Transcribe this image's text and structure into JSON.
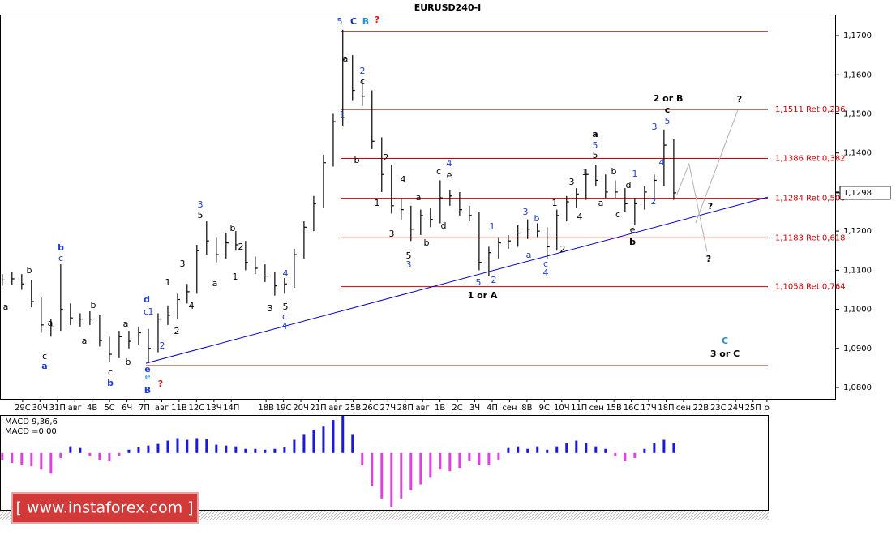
{
  "chart_data": {
    "type": "ohlc",
    "title": "EURUSD240-I",
    "color": "#000000",
    "x": [
      -1.17,
      -0.61,
      -0.05,
      0.51,
      1.07,
      1.63,
      2.19,
      2.75,
      3.31,
      3.87,
      4.43,
      4.99,
      5.55,
      6.11,
      6.67,
      7.23,
      7.79,
      8.35,
      8.91,
      9.46,
      10.02,
      10.58,
      11.14,
      11.7,
      12.26,
      12.82,
      13.38,
      13.94,
      14.5,
      15.06,
      15.62,
      16.18,
      16.74,
      17.3,
      17.86,
      18.41,
      18.97,
      19.53,
      20.09,
      20.65,
      21.21,
      21.77,
      22.33,
      22.89,
      23.45,
      24.01,
      24.57,
      25.13,
      25.69,
      26.25,
      26.81,
      27.37,
      27.93,
      28.48,
      29.04,
      29.6,
      30.16,
      30.72,
      31.28,
      31.84,
      32.4,
      32.96,
      33.52,
      34.08,
      34.64,
      35.2,
      35.76,
      36.32,
      36.88,
      37.44
    ],
    "high": [
      1.109,
      1.1095,
      1.109,
      1.1075,
      1.103,
      1.0975,
      1.1115,
      1.1015,
      1.099,
      1.0995,
      1.0985,
      1.093,
      1.0945,
      1.0945,
      1.0955,
      1.095,
      1.099,
      1.101,
      1.104,
      1.1065,
      1.1165,
      1.1225,
      1.1185,
      1.1195,
      1.12,
      1.1175,
      1.1135,
      1.1115,
      1.1095,
      1.108,
      1.1155,
      1.1225,
      1.129,
      1.1395,
      1.15,
      1.1715,
      1.165,
      1.159,
      1.156,
      1.144,
      1.137,
      1.1285,
      1.1265,
      1.1255,
      1.126,
      1.133,
      1.1305,
      1.13,
      1.1265,
      1.125,
      1.116,
      1.1185,
      1.119,
      1.1215,
      1.123,
      1.122,
      1.121,
      1.1255,
      1.129,
      1.131,
      1.136,
      1.137,
      1.1345,
      1.133,
      1.131,
      1.1285,
      1.1315,
      1.1345,
      1.146,
      1.1435
    ],
    "low": [
      1.106,
      1.1062,
      1.105,
      1.1005,
      1.094,
      1.093,
      1.0945,
      1.096,
      1.0955,
      1.096,
      1.0905,
      1.0865,
      1.0875,
      1.09,
      1.091,
      1.0862,
      1.089,
      1.096,
      1.0975,
      1.1015,
      1.104,
      1.114,
      1.112,
      1.113,
      1.115,
      1.11,
      1.109,
      1.107,
      1.1035,
      1.104,
      1.1055,
      1.113,
      1.12,
      1.126,
      1.1365,
      1.147,
      1.1535,
      1.152,
      1.141,
      1.13,
      1.1245,
      1.123,
      1.1175,
      1.119,
      1.121,
      1.122,
      1.1265,
      1.124,
      1.1225,
      1.11,
      1.1085,
      1.113,
      1.1155,
      1.116,
      1.118,
      1.1185,
      1.113,
      1.115,
      1.1225,
      1.126,
      1.128,
      1.1315,
      1.1285,
      1.1285,
      1.125,
      1.1215,
      1.1255,
      1.1285,
      1.1315,
      1.128
    ],
    "close": [
      1.1075,
      1.1078,
      1.1065,
      1.102,
      1.096,
      1.0955,
      1.1,
      1.0978,
      1.0975,
      1.0975,
      1.092,
      1.0885,
      1.093,
      1.0918,
      1.094,
      1.09,
      1.0975,
      1.0985,
      1.1025,
      1.1045,
      1.115,
      1.1175,
      1.114,
      1.117,
      1.1165,
      1.112,
      1.1105,
      1.1085,
      1.106,
      1.1065,
      1.114,
      1.121,
      1.127,
      1.1375,
      1.148,
      1.164,
      1.156,
      1.1545,
      1.143,
      1.1345,
      1.1265,
      1.1255,
      1.1205,
      1.124,
      1.123,
      1.1285,
      1.129,
      1.1255,
      1.124,
      1.112,
      1.1145,
      1.117,
      1.1175,
      1.1195,
      1.1205,
      1.12,
      1.116,
      1.124,
      1.1275,
      1.1295,
      1.1345,
      1.133,
      1.13,
      1.13,
      1.127,
      1.127,
      1.13,
      1.133,
      1.142,
      1.1298
    ],
    "xlim": [
      -1.3,
      42.9
    ],
    "xticks": [
      {
        "value": 0,
        "label": "29С"
      },
      {
        "value": 1,
        "label": "30Ч"
      },
      {
        "value": 2,
        "label": "31П"
      },
      {
        "value": 3,
        "label": "авг"
      },
      {
        "value": 4,
        "label": "4В"
      },
      {
        "value": 5,
        "label": "5С"
      },
      {
        "value": 6,
        "label": "6Ч"
      },
      {
        "value": 7,
        "label": "7П"
      },
      {
        "value": 8,
        "label": "авг"
      },
      {
        "value": 9,
        "label": "11В"
      },
      {
        "value": 10,
        "label": "12С"
      },
      {
        "value": 11,
        "label": "13Ч"
      },
      {
        "value": 12,
        "label": "14П"
      },
      {
        "value": 14,
        "label": "18В"
      },
      {
        "value": 15,
        "label": "19С"
      },
      {
        "value": 16,
        "label": "20Ч"
      },
      {
        "value": 17,
        "label": "21П"
      },
      {
        "value": 18,
        "label": "авг"
      },
      {
        "value": 19,
        "label": "25В"
      },
      {
        "value": 20,
        "label": "26С"
      },
      {
        "value": 21,
        "label": "27Ч"
      },
      {
        "value": 22,
        "label": "28П"
      },
      {
        "value": 23,
        "label": "авг"
      },
      {
        "value": 24,
        "label": "1В"
      },
      {
        "value": 25,
        "label": "2С"
      },
      {
        "value": 26,
        "label": "3Ч"
      },
      {
        "value": 27,
        "label": "4П"
      },
      {
        "value": 28,
        "label": "сен"
      },
      {
        "value": 29,
        "label": "8В"
      },
      {
        "value": 30,
        "label": "9С"
      },
      {
        "value": 31,
        "label": "10Ч"
      },
      {
        "value": 32,
        "label": "11П"
      },
      {
        "value": 33,
        "label": "сен"
      },
      {
        "value": 34,
        "label": "15В"
      },
      {
        "value": 35,
        "label": "16С"
      },
      {
        "value": 36,
        "label": "17Ч"
      },
      {
        "value": 37,
        "label": "18П"
      },
      {
        "value": 38,
        "label": "сен"
      },
      {
        "value": 39,
        "label": "22В"
      },
      {
        "value": 40,
        "label": "23С"
      },
      {
        "value": 41,
        "label": "24Ч"
      },
      {
        "value": 42,
        "label": "25П"
      },
      {
        "value": 42.8,
        "label": "о"
      }
    ],
    "ylim": [
      1.0771,
      1.1754
    ],
    "yticks": [
      {
        "value": 1.17,
        "label": "1,1700"
      },
      {
        "value": 1.16,
        "label": "1,1600"
      },
      {
        "value": 1.15,
        "label": "1,1500"
      },
      {
        "value": 1.14,
        "label": "1,1400"
      },
      {
        "value": 1.13,
        "label": "1,1300"
      },
      {
        "value": 1.12,
        "label": "1,1200"
      },
      {
        "value": 1.11,
        "label": "1,1100"
      },
      {
        "value": 1.1,
        "label": "1,1000"
      },
      {
        "value": 1.09,
        "label": "1,0900"
      },
      {
        "value": 1.08,
        "label": "1,0800"
      }
    ],
    "last_price": {
      "value": 1.1298,
      "label": "1,1298"
    },
    "level_color": "#cc0000",
    "levels": [
      {
        "value": 1.1711,
        "from": 18.28
      },
      {
        "value": 1.1511,
        "label": "1,1511 Ret 0,236",
        "from": 18.28
      },
      {
        "value": 1.1386,
        "label": "1,1386 Ret 0,382",
        "from": 18.28
      },
      {
        "value": 1.1284,
        "label": "1,1284 Ret 0,500",
        "from": 18.28
      },
      {
        "value": 1.1183,
        "label": "1,1183 Ret 0,618",
        "from": 18.28
      },
      {
        "value": 1.1058,
        "label": "1,1058 Ret 0,764",
        "from": 18.28
      },
      {
        "value": 1.0856,
        "from": 7.09
      }
    ],
    "trend_color": "#0000cc",
    "trendline": {
      "x": [
        7.09,
        42.85
      ],
      "y": [
        1.0862,
        1.1287
      ]
    },
    "projection_color": "#b0b0b0",
    "projections": [
      {
        "x": [
          37.62,
          38.32,
          39.35
        ],
        "y": [
          1.1294,
          1.1372,
          1.1148
        ]
      },
      {
        "x": [
          38.7,
          41.12
        ],
        "y": [
          1.1221,
          1.1509
        ]
      }
    ],
    "annotations": [
      {
        "text": "5",
        "color": "#1f3fd0"
      },
      {
        "text": "C",
        "color": "#1030a0"
      },
      {
        "text": "B",
        "color": "#2090c8"
      },
      {
        "text": "?",
        "color": "#e01010"
      },
      {
        "text": "a",
        "color": "#000000"
      },
      {
        "text": "2",
        "color": "#1f3fd0"
      },
      {
        "text": "c",
        "color": "#000000"
      },
      {
        "text": "1",
        "color": "#1f3fd0"
      },
      {
        "text": "b",
        "color": "#000000"
      },
      {
        "text": "2",
        "color": "#000000"
      },
      {
        "text": "1",
        "color": "#000000"
      },
      {
        "text": "4",
        "color": "#000000"
      },
      {
        "text": "3",
        "color": "#000000"
      },
      {
        "text": "a",
        "color": "#000000"
      },
      {
        "text": "5",
        "color": "#000000"
      },
      {
        "text": "3",
        "color": "#1f3fd0"
      },
      {
        "text": "b",
        "color": "#000000"
      },
      {
        "text": "c",
        "color": "#000000"
      },
      {
        "text": "4",
        "color": "#1f3fd0"
      },
      {
        "text": "e",
        "color": "#000000"
      },
      {
        "text": "d",
        "color": "#000000"
      },
      {
        "text": "1",
        "color": "#1f3fd0"
      },
      {
        "text": "5",
        "color": "#1f3fd0"
      },
      {
        "text": "2",
        "color": "#1f3fd0"
      },
      {
        "text": "1 or A",
        "color": "#000000"
      },
      {
        "text": "3",
        "color": "#1f3fd0"
      },
      {
        "text": "b",
        "color": "#1f3fd0"
      },
      {
        "text": "a",
        "color": "#1f3fd0"
      },
      {
        "text": "c",
        "color": "#1f3fd0"
      },
      {
        "text": "4",
        "color": "#1f3fd0"
      },
      {
        "text": "1",
        "color": "#000000"
      },
      {
        "text": "2",
        "color": "#000000"
      },
      {
        "text": "3",
        "color": "#000000"
      },
      {
        "text": "4",
        "color": "#000000"
      },
      {
        "text": "1",
        "color": "#000000"
      },
      {
        "text": "a",
        "color": "#000000"
      },
      {
        "text": "5",
        "color": "#1f3fd0"
      },
      {
        "text": "5",
        "color": "#000000"
      },
      {
        "text": "a",
        "color": "#000000"
      },
      {
        "text": "b",
        "color": "#000000"
      },
      {
        "text": "c",
        "color": "#000000"
      },
      {
        "text": "d",
        "color": "#000000"
      },
      {
        "text": "1",
        "color": "#1f3fd0"
      },
      {
        "text": "e",
        "color": "#000000"
      },
      {
        "text": "b",
        "color": "#000000"
      },
      {
        "text": "2",
        "color": "#1f3fd0"
      },
      {
        "text": "3",
        "color": "#1f3fd0"
      },
      {
        "text": "4",
        "color": "#1f3fd0"
      },
      {
        "text": "5",
        "color": "#1f3fd0"
      },
      {
        "text": "c",
        "color": "#000000"
      },
      {
        "text": "2 or B",
        "color": "#000000"
      },
      {
        "text": "?",
        "color": "#000000"
      },
      {
        "text": "?",
        "color": "#000000"
      },
      {
        "text": "?",
        "color": "#000000"
      },
      {
        "text": "C",
        "color": "#2090c8"
      },
      {
        "text": "3 or C",
        "color": "#000000"
      },
      {
        "text": "a",
        "color": "#000000"
      },
      {
        "text": "b",
        "color": "#000000"
      },
      {
        "text": "a",
        "color": "#000000"
      },
      {
        "text": "c",
        "color": "#000000"
      },
      {
        "text": "a",
        "color": "#1f3fd0"
      },
      {
        "text": "b",
        "color": "#1f3fd0"
      },
      {
        "text": "c",
        "color": "#1f3fd0"
      },
      {
        "text": "a",
        "color": "#000000"
      },
      {
        "text": "b",
        "color": "#000000"
      },
      {
        "text": "c",
        "color": "#000000"
      },
      {
        "text": "b",
        "color": "#1f3fd0"
      },
      {
        "text": "a",
        "color": "#000000"
      },
      {
        "text": "b",
        "color": "#000000"
      },
      {
        "text": "d",
        "color": "#1f3fd0"
      },
      {
        "text": "c",
        "color": "#1f3fd0"
      },
      {
        "text": "1",
        "color": "#1f3fd0"
      },
      {
        "text": "e",
        "color": "#1f3fd0"
      },
      {
        "text": "e",
        "color": "#2090c8"
      },
      {
        "text": "B",
        "color": "#1f3fd0"
      },
      {
        "text": "?",
        "color": "#e01010"
      },
      {
        "text": "2",
        "color": "#1f3fd0"
      },
      {
        "text": "2",
        "color": "#000000"
      },
      {
        "text": "1",
        "color": "#000000"
      },
      {
        "text": "4",
        "color": "#000000"
      },
      {
        "text": "3",
        "color": "#000000"
      },
      {
        "text": "3",
        "color": "#1f3fd0"
      },
      {
        "text": "5",
        "color": "#000000"
      },
      {
        "text": "b",
        "color": "#000000"
      },
      {
        "text": "2",
        "color": "#000000"
      },
      {
        "text": "a",
        "color": "#000000"
      },
      {
        "text": "1",
        "color": "#000000"
      },
      {
        "text": "3",
        "color": "#000000"
      },
      {
        "text": "4",
        "color": "#1f3fd0"
      },
      {
        "text": "5",
        "color": "#000000"
      },
      {
        "text": "c",
        "color": "#1f3fd0"
      },
      {
        "text": "4",
        "color": "#1f3fd0"
      }
    ],
    "macd": {
      "type": "histogram",
      "labels": [
        "MACD 9,36,6",
        "MACD =0,00"
      ],
      "up_color": "#1a1adb",
      "down_color": "#e040e0",
      "ylim": [
        -0.0065,
        0.0045
      ],
      "values": [
        -0.0008,
        -0.0012,
        -0.0015,
        -0.0016,
        -0.002,
        -0.0025,
        -0.0006,
        0.0008,
        0.0006,
        -0.0004,
        -0.0008,
        -0.001,
        -0.0003,
        0.0004,
        0.0007,
        0.0009,
        0.0011,
        0.0015,
        0.0018,
        0.0016,
        0.0018,
        0.0017,
        0.001,
        0.0009,
        0.0008,
        0.0005,
        0.0005,
        0.0004,
        0.0005,
        0.0007,
        0.0016,
        0.0022,
        0.0028,
        0.0032,
        0.004,
        0.0045,
        0.0022,
        -0.0015,
        -0.004,
        -0.0055,
        -0.0065,
        -0.0055,
        -0.0045,
        -0.0038,
        -0.003,
        -0.002,
        -0.0022,
        -0.0018,
        -0.001,
        -0.0015,
        -0.0015,
        -0.0008,
        0.0006,
        0.0008,
        0.0005,
        0.0008,
        0.0004,
        0.0008,
        0.0012,
        0.0015,
        0.0012,
        0.0008,
        0.0005,
        -0.0004,
        -0.001,
        -0.0006,
        0.0005,
        0.0012,
        0.0016,
        0.0012
      ]
    },
    "watermark": "[ www.instaforex.com ]"
  }
}
